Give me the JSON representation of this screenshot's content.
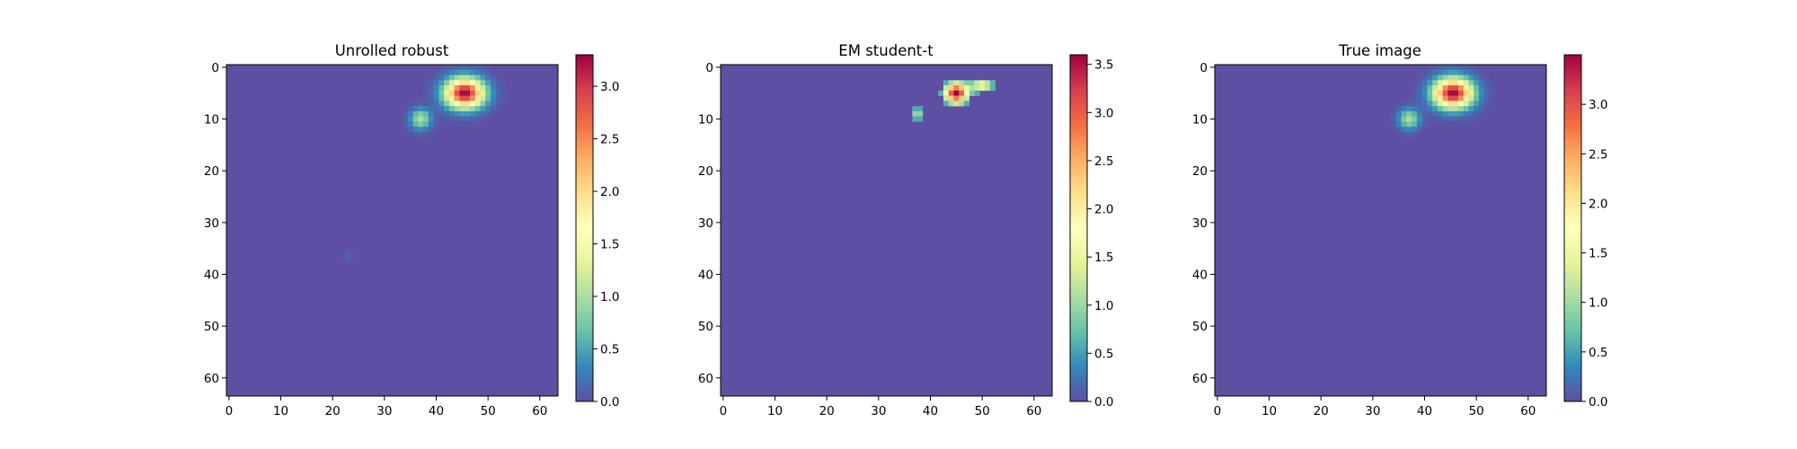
{
  "colors": {
    "background": "#5e4fa2",
    "colormap": [
      "#5e4fa2",
      "#3288bd",
      "#66c2a5",
      "#abdda4",
      "#e6f598",
      "#ffffbf",
      "#fee08b",
      "#fdae61",
      "#f46d43",
      "#d53e4f",
      "#9e0142"
    ],
    "axes": "#000000"
  },
  "chart_data": [
    {
      "type": "heatmap",
      "title": "Unrolled robust",
      "colormap": "Spectral_r",
      "image_size": [
        64,
        64
      ],
      "xlim": [
        -0.5,
        63.5
      ],
      "ylim": [
        63.5,
        -0.5
      ],
      "x_ticks": [
        0,
        10,
        20,
        30,
        40,
        50,
        60
      ],
      "y_ticks": [
        0,
        10,
        20,
        30,
        40,
        50,
        60
      ],
      "colorbar": {
        "min": 0.0,
        "max": 3.3,
        "ticks": [
          "0.0",
          "0.5",
          "1.0",
          "1.5",
          "2.0",
          "2.5",
          "3.0"
        ]
      },
      "blobs": [
        {
          "label": "large blob",
          "x": 45.5,
          "y": 5,
          "sigma_x": 2.6,
          "sigma_y": 2.0,
          "peak": 3.3
        },
        {
          "label": "small blob",
          "x": 37,
          "y": 10,
          "sigma_x": 1.4,
          "sigma_y": 1.4,
          "peak": 1.0
        },
        {
          "label": "faint artifact",
          "x": 23,
          "y": 36.5,
          "sigma_x": 0.6,
          "sigma_y": 0.6,
          "peak": 0.12
        }
      ]
    },
    {
      "type": "heatmap",
      "title": "EM student-t",
      "colormap": "Spectral_r",
      "image_size": [
        64,
        64
      ],
      "xlim": [
        -0.5,
        63.5
      ],
      "ylim": [
        63.5,
        -0.5
      ],
      "x_ticks": [
        0,
        10,
        20,
        30,
        40,
        50,
        60
      ],
      "y_ticks": [
        0,
        10,
        20,
        30,
        40,
        50,
        60
      ],
      "colorbar": {
        "min": 0.0,
        "max": 3.6,
        "ticks": [
          "0.0",
          "0.5",
          "1.0",
          "1.5",
          "2.0",
          "2.5",
          "3.0",
          "3.5"
        ]
      },
      "threshold": 0.55,
      "blobs": [
        {
          "label": "large blob",
          "x": 45,
          "y": 5,
          "sigma_x": 1.6,
          "sigma_y": 1.4,
          "peak": 3.6
        },
        {
          "label": "upper-right lobe",
          "x": 50,
          "y": 3.5,
          "sigma_x": 1.6,
          "sigma_y": 1.0,
          "peak": 1.6
        },
        {
          "label": "small blob",
          "x": 37.5,
          "y": 9,
          "sigma_x": 1.0,
          "sigma_y": 1.0,
          "peak": 1.05
        }
      ]
    },
    {
      "type": "heatmap",
      "title": "True image",
      "colormap": "Spectral_r",
      "image_size": [
        64,
        64
      ],
      "xlim": [
        -0.5,
        63.5
      ],
      "ylim": [
        63.5,
        -0.5
      ],
      "x_ticks": [
        0,
        10,
        20,
        30,
        40,
        50,
        60
      ],
      "y_ticks": [
        0,
        10,
        20,
        30,
        40,
        50,
        60
      ],
      "colorbar": {
        "min": 0.0,
        "max": 3.5,
        "ticks": [
          "0.0",
          "0.5",
          "1.0",
          "1.5",
          "2.0",
          "2.5",
          "3.0"
        ]
      },
      "blobs": [
        {
          "label": "large blob",
          "x": 45.5,
          "y": 5,
          "sigma_x": 2.6,
          "sigma_y": 2.0,
          "peak": 3.5
        },
        {
          "label": "small blob",
          "x": 37,
          "y": 10,
          "sigma_x": 1.4,
          "sigma_y": 1.4,
          "peak": 1.05
        }
      ]
    }
  ]
}
